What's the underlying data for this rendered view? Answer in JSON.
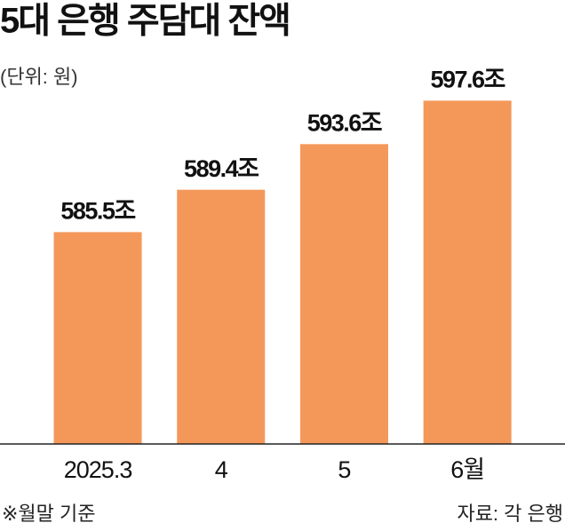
{
  "chart_data": {
    "type": "bar",
    "title": "5대 은행 주담대 잔액",
    "subtitle": "(단위: 원)",
    "categories": [
      "2025.3",
      "4",
      "5",
      "6월"
    ],
    "values": [
      585.5,
      589.4,
      593.6,
      597.6
    ],
    "value_labels": [
      "585.5조",
      "589.4조",
      "593.6조",
      "597.6조"
    ],
    "color": "#f4985a",
    "ylim": [
      566,
      600
    ],
    "footnote": "※월말 기준",
    "source": "자료: 각 은행"
  }
}
